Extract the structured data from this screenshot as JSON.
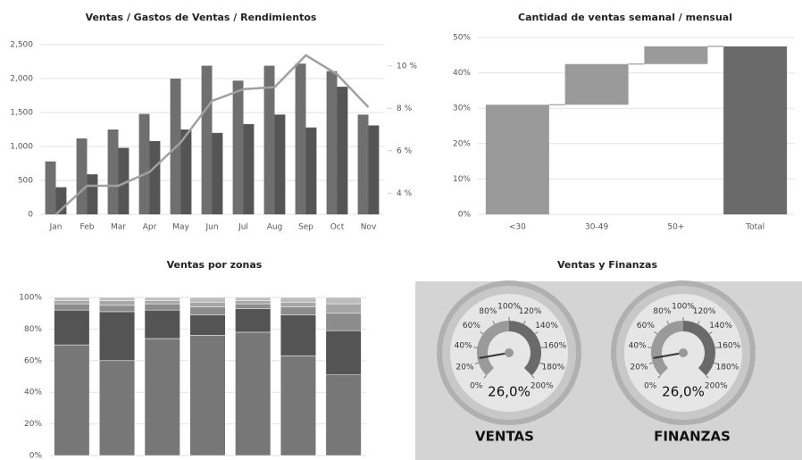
{
  "chart_data": [
    {
      "type": "combo",
      "title": "Ventas / Gastos de Ventas / Rendimientos",
      "categories": [
        "Jan",
        "Feb",
        "Mar",
        "Apr",
        "May",
        "Jun",
        "Jul",
        "Aug",
        "Sep",
        "Oct",
        "Nov"
      ],
      "series": [
        {
          "type": "bar",
          "color": "#6f6f6f",
          "values": [
            780,
            1120,
            1250,
            1480,
            2000,
            2190,
            1970,
            2190,
            2220,
            2110,
            1470
          ]
        },
        {
          "type": "bar",
          "color": "#555555",
          "values": [
            400,
            590,
            980,
            1080,
            1250,
            1200,
            1330,
            1470,
            1280,
            1880,
            1310
          ]
        },
        {
          "type": "line",
          "axis": "y2",
          "color": "#a0a0a0",
          "values": [
            3.0,
            4.35,
            4.35,
            5.0,
            6.4,
            8.35,
            8.9,
            9.0,
            10.5,
            9.6,
            8.05
          ]
        }
      ],
      "ylim": [
        0,
        2500
      ],
      "yticks": [
        0,
        500,
        {
          "value": 1000,
          "label": "1,000"
        },
        {
          "value": 1500,
          "label": "1,500"
        },
        {
          "value": 2000,
          "label": "2,000"
        },
        {
          "value": 2500,
          "label": "2,500"
        }
      ],
      "y2lim": [
        3,
        11
      ],
      "y2ticks": [
        {
          "value": 4,
          "label": "4 %"
        },
        {
          "value": 6,
          "label": "6 %"
        },
        {
          "value": 8,
          "label": "8 %"
        },
        {
          "value": 10,
          "label": "10 %"
        }
      ],
      "grid": true
    },
    {
      "type": "waterfall",
      "title": "Cantidad de ventas semanal / mensual",
      "categories": [
        "<30",
        "30-49",
        "50+",
        "Total"
      ],
      "values": [
        31,
        11.5,
        5,
        47.5
      ],
      "color": "#9a9a9a",
      "total_color": "#6a6a6a",
      "ylim": [
        0,
        50
      ],
      "yticks": [
        {
          "value": 0,
          "label": "0%"
        },
        {
          "value": 10,
          "label": "10%"
        },
        {
          "value": 20,
          "label": "20%"
        },
        {
          "value": 30,
          "label": "30%"
        },
        {
          "value": 40,
          "label": "40%"
        },
        {
          "value": 50,
          "label": "50%"
        }
      ],
      "grid": true
    },
    {
      "type": "stacked_bar",
      "title": "Ventas por zonas",
      "categories": [
        null,
        null,
        null,
        null,
        null,
        null,
        null
      ],
      "series": [
        {
          "color": "#777777",
          "values": [
            70,
            60,
            74,
            76,
            78,
            63,
            51
          ]
        },
        {
          "color": "#545454",
          "values": [
            22,
            31,
            18,
            13,
            15,
            26,
            28
          ]
        },
        {
          "color": "#8c8c8c",
          "values": [
            4,
            4,
            4,
            5,
            3,
            5,
            11
          ]
        },
        {
          "color": "#a6a6a6",
          "values": [
            2,
            3,
            2,
            3,
            2,
            3,
            6
          ]
        },
        {
          "color": "#bdbdbd",
          "values": [
            2,
            2,
            2,
            3,
            2,
            3,
            4
          ]
        }
      ],
      "ylim": [
        0,
        100
      ],
      "yticks": [
        {
          "value": 0,
          "label": "0%"
        },
        {
          "value": 20,
          "label": "20%"
        },
        {
          "value": 40,
          "label": "40%"
        },
        {
          "value": 60,
          "label": "60%"
        },
        {
          "value": 80,
          "label": "80%"
        },
        {
          "value": 100,
          "label": "100%"
        }
      ],
      "grid": true
    },
    {
      "type": "gauge",
      "title": "Ventas y Finanzas",
      "range": [
        0,
        200
      ],
      "ticks": [
        {
          "value": 0,
          "label": "0%"
        },
        {
          "value": 20,
          "label": "20%"
        },
        {
          "value": 40,
          "label": "40%"
        },
        {
          "value": 60,
          "label": "60%"
        },
        {
          "value": 80,
          "label": "80%"
        },
        {
          "value": 100,
          "label": "100%"
        },
        {
          "value": 120,
          "label": "120%"
        },
        {
          "value": 140,
          "label": "140%"
        },
        {
          "value": 160,
          "label": "160%"
        },
        {
          "value": 180,
          "label": "180%"
        },
        {
          "value": 200,
          "label": "200%"
        }
      ],
      "gauges": [
        {
          "label": "VENTAS",
          "value": 26,
          "value_label": "26,0%"
        },
        {
          "label": "FINANZAS",
          "value": 26,
          "value_label": "26,0%"
        }
      ]
    }
  ]
}
